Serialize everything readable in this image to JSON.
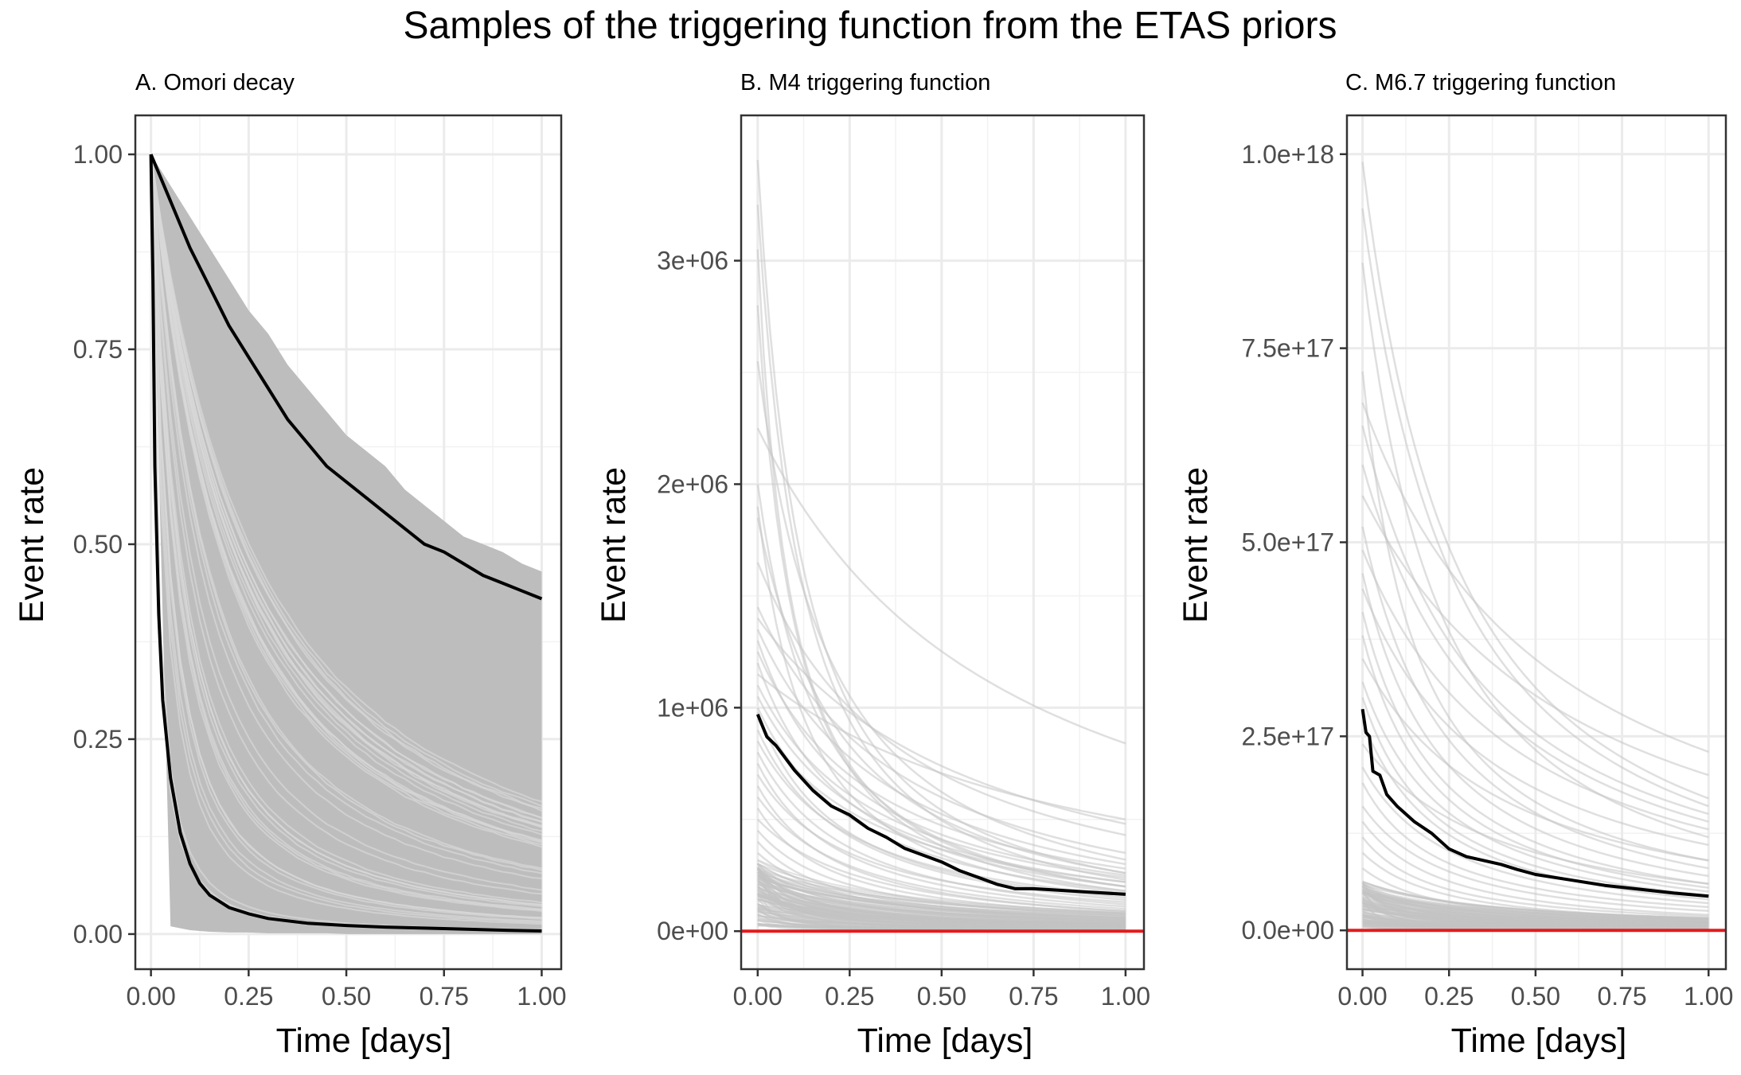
{
  "figure": {
    "title": "Samples of the triggering function from the ETAS priors"
  },
  "chart_data": [
    {
      "type": "line",
      "title": "A. Omori decay",
      "xlabel": "Time [days]",
      "ylabel": "Event rate",
      "xlim": [
        -0.04,
        1.05
      ],
      "ylim": [
        -0.045,
        1.05
      ],
      "x_ticks": [
        0,
        0.25,
        0.5,
        0.75,
        1.0
      ],
      "x_tick_labels": [
        "0.00",
        "0.25",
        "0.50",
        "0.75",
        "1.00"
      ],
      "y_ticks": [
        0,
        0.25,
        0.5,
        0.75,
        1.0
      ],
      "y_tick_labels": [
        "0.00",
        "0.25",
        "0.50",
        "0.75",
        "1.00"
      ],
      "grid": true,
      "sample_band": {
        "x": [
          0.0,
          0.05,
          0.1,
          0.15,
          0.2,
          0.25,
          0.3,
          0.35,
          0.4,
          0.45,
          0.5,
          0.55,
          0.6,
          0.65,
          0.7,
          0.75,
          0.8,
          0.85,
          0.9,
          0.95,
          1.0
        ],
        "upper": [
          1.0,
          0.96,
          0.92,
          0.88,
          0.84,
          0.8,
          0.77,
          0.73,
          0.7,
          0.67,
          0.64,
          0.62,
          0.6,
          0.57,
          0.55,
          0.53,
          0.51,
          0.5,
          0.49,
          0.475,
          0.465
        ],
        "lower": [
          1.0,
          0.01,
          0.005,
          0.003,
          0.002,
          0.002,
          0.001,
          0.001,
          0.001,
          0.001,
          0.0,
          0.0,
          0.0,
          0.0,
          0.0,
          0.0,
          0.0,
          0.0,
          0.0,
          0.0,
          0.0
        ]
      },
      "sample_color": "#bdbdbd",
      "series": [
        {
          "color": "#000000",
          "x": [
            0.0,
            0.05,
            0.1,
            0.15,
            0.2,
            0.25,
            0.3,
            0.35,
            0.4,
            0.45,
            0.5,
            0.55,
            0.6,
            0.65,
            0.7,
            0.75,
            0.8,
            0.85,
            0.9,
            0.95,
            1.0
          ],
          "y": [
            1.0,
            0.94,
            0.88,
            0.83,
            0.78,
            0.74,
            0.7,
            0.66,
            0.63,
            0.6,
            0.58,
            0.56,
            0.54,
            0.52,
            0.5,
            0.49,
            0.475,
            0.46,
            0.45,
            0.44,
            0.43
          ]
        },
        {
          "color": "#000000",
          "x": [
            0.0,
            0.005,
            0.01,
            0.02,
            0.03,
            0.05,
            0.075,
            0.1,
            0.125,
            0.15,
            0.2,
            0.25,
            0.3,
            0.4,
            0.5,
            0.6,
            0.75,
            0.9,
            1.0
          ],
          "y": [
            1.0,
            0.84,
            0.6,
            0.41,
            0.3,
            0.2,
            0.13,
            0.09,
            0.065,
            0.05,
            0.034,
            0.026,
            0.02,
            0.014,
            0.011,
            0.009,
            0.007,
            0.005,
            0.004
          ]
        }
      ]
    },
    {
      "type": "line",
      "title": "B. M4 triggering function",
      "xlabel": "Time [days]",
      "ylabel": "Event rate",
      "xlim": [
        -0.045,
        1.05
      ],
      "ylim": [
        -170000,
        3650000
      ],
      "x_ticks": [
        0,
        0.25,
        0.5,
        0.75,
        1.0
      ],
      "x_tick_labels": [
        "0.00",
        "0.25",
        "0.50",
        "0.75",
        "1.00"
      ],
      "y_ticks": [
        0,
        1000000,
        2000000,
        3000000
      ],
      "y_tick_labels": [
        "0e+00",
        "1e+06",
        "2e+06",
        "3e+06"
      ],
      "grid": true,
      "sample_color": "#c4c4c4",
      "sample_starts": [
        3450000,
        3250000,
        3050000,
        2800000,
        2550000,
        2250000,
        2000000,
        1900000,
        1850000,
        1650000,
        1450000,
        1400000,
        1350000,
        1300000,
        1250000,
        1200000,
        1150000,
        1100000,
        1050000,
        1000000,
        980000,
        950000,
        900000,
        850000,
        800000,
        750000,
        700000,
        650000,
        600000,
        550000,
        500000,
        450000,
        400000,
        350000,
        300000,
        250000,
        200000,
        150000,
        100000
      ],
      "sample_ends": [
        260000,
        230000,
        200000,
        180000,
        320000,
        840000,
        200000,
        170000,
        260000,
        430000,
        350000,
        480000,
        300000,
        250000,
        280000,
        200000,
        500000,
        240000,
        220000,
        180000,
        150000,
        220000,
        140000,
        160000,
        120000,
        110000,
        130000,
        90000,
        100000,
        80000,
        90000,
        70000,
        60000,
        50000,
        40000,
        30000,
        25000,
        15000,
        10000
      ],
      "reference_line": {
        "y": 0,
        "color": "#e41a1c"
      },
      "series": [
        {
          "color": "#000000",
          "x": [
            0.0,
            0.025,
            0.05,
            0.1,
            0.15,
            0.2,
            0.25,
            0.3,
            0.35,
            0.4,
            0.45,
            0.5,
            0.55,
            0.6,
            0.65,
            0.7,
            0.75,
            0.8,
            0.9,
            1.0
          ],
          "y": [
            970000,
            870000,
            830000,
            720000,
            630000,
            560000,
            520000,
            460000,
            420000,
            370000,
            340000,
            310000,
            270000,
            240000,
            210000,
            190000,
            190000,
            185000,
            175000,
            165000
          ]
        }
      ]
    },
    {
      "type": "line",
      "title": "C. M6.7 triggering function",
      "xlabel": "Time [days]",
      "ylabel": "Event rate",
      "xlim": [
        -0.045,
        1.05
      ],
      "ylim": [
        -5e+16,
        1.05e+18
      ],
      "x_ticks": [
        0,
        0.25,
        0.5,
        0.75,
        1.0
      ],
      "x_tick_labels": [
        "0.00",
        "0.25",
        "0.50",
        "0.75",
        "1.00"
      ],
      "y_ticks": [
        0,
        2.5e+17,
        5e+17,
        7.5e+17,
        1e+18
      ],
      "y_tick_labels": [
        "0.0e+00",
        "2.5e+17",
        "5.0e+17",
        "7.5e+17",
        "1.0e+18"
      ],
      "grid": true,
      "sample_color": "#c4c4c4",
      "sample_starts": [
        9.9e+17,
        9.3e+17,
        8.6e+17,
        7.2e+17,
        6.8e+17,
        6.5e+17,
        6e+17,
        5.6e+17,
        5.2e+17,
        4.9e+17,
        4.6e+17,
        4.4e+17,
        4.1e+17,
        3.8e+17,
        3.5e+17,
        3.2e+17,
        3e+17,
        2.7e+17,
        2.4e+17,
        2.1e+17,
        1.9e+17,
        1.6e+17,
        1.4e+17,
        1.2e+17,
        1e+17,
        8e+16,
        6e+16,
        4e+16,
        2e+16
      ],
      "sample_ends": [
        1.7e+17,
        1.6e+17,
        1.2e+17,
        9e+16,
        2.3e+17,
        1.5e+17,
        1.4e+17,
        2e+17,
        8e+16,
        1.3e+17,
        7e+16,
        1.1e+17,
        6e+16,
        5.5e+16,
        9e+16,
        5e+16,
        4.5e+16,
        4e+16,
        6e+16,
        3.5e+16,
        3e+16,
        2.5e+16,
        2e+16,
        1.8e+16,
        1.5e+16,
        1.2e+16,
        1e+16,
        6000000000000000.0,
        3000000000000000.0
      ],
      "reference_line": {
        "y": 0,
        "color": "#e41a1c"
      },
      "series": [
        {
          "color": "#000000",
          "x": [
            0.0,
            0.01,
            0.02,
            0.03,
            0.05,
            0.07,
            0.1,
            0.15,
            0.2,
            0.25,
            0.3,
            0.35,
            0.4,
            0.45,
            0.5,
            0.6,
            0.7,
            0.8,
            0.9,
            1.0
          ],
          "y": [
            2.85e+17,
            2.55e+17,
            2.5e+17,
            2.05e+17,
            2e+17,
            1.75e+17,
            1.6e+17,
            1.4e+17,
            1.25e+17,
            1.05e+17,
            9.5e+16,
            9e+16,
            8.5e+16,
            7.8e+16,
            7.2e+16,
            6.5e+16,
            5.8e+16,
            5.3e+16,
            4.8e+16,
            4.4e+16
          ]
        }
      ]
    }
  ]
}
